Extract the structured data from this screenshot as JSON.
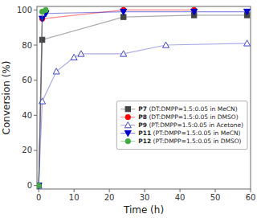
{
  "chart_data": {
    "type": "line",
    "xlabel": "Time (h)",
    "ylabel": "Conversion (%)",
    "xlim": [
      -0.5,
      60
    ],
    "ylim": [
      -2,
      102
    ],
    "xticks": [
      0,
      10,
      20,
      30,
      40,
      50,
      60
    ],
    "yticks": [
      0,
      20,
      40,
      60,
      80,
      100
    ],
    "grid": false,
    "legend": "right",
    "series": [
      {
        "name": "P7 (DT:DMPP=1.5:0.05 in MeCN)",
        "color": "#444444",
        "marker": "square",
        "x": [
          0,
          1,
          24,
          44,
          59
        ],
        "values": [
          0,
          83,
          96,
          97,
          97
        ]
      },
      {
        "name": "P8 (DT:DMPP=1.5:0.05 in DMSO)",
        "color": "#ff0000",
        "marker": "circle",
        "x": [
          0,
          1,
          24,
          44
        ],
        "values": [
          0,
          95,
          100,
          100
        ]
      },
      {
        "name": "P9 (PT:DMPP=1.5:0.05 in Acetone)",
        "color": "#4444cc",
        "marker": "triangle-up-open",
        "x": [
          0,
          1,
          5,
          10,
          12,
          24,
          36,
          59
        ],
        "values": [
          0,
          48,
          65,
          73,
          75,
          75,
          80,
          81
        ]
      },
      {
        "name": "P11 (PT:DMPP=1.5:0.05 in MeCN)",
        "color": "#0000cc",
        "marker": "triangle-down",
        "x": [
          0,
          1,
          2,
          24,
          44,
          59
        ],
        "values": [
          0,
          95,
          98,
          99,
          99,
          99
        ]
      },
      {
        "name": "P12 (PT:DMPP=1.5:0.05 in DMSO)",
        "color": "#44aa44",
        "marker": "circle",
        "x": [
          0,
          1,
          2
        ],
        "values": [
          0,
          99,
          100
        ]
      }
    ]
  }
}
